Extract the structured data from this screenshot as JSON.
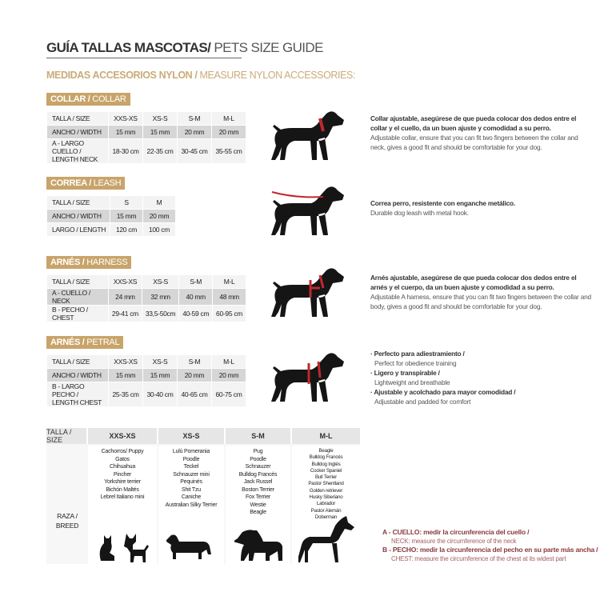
{
  "title": {
    "es": "GUÍA TALLAS MASCOTAS/",
    "en": " PETS SIZE GUIDE"
  },
  "subtitle": {
    "es": "MEDIDAS ACCESORIOS NYLON /",
    "en": " MEASURE NYLON ACCESSORIES:"
  },
  "collar": {
    "badge_es": "COLLAR /",
    "badge_en": " COLLAR",
    "header": [
      "TALLA / SIZE",
      "XXS-XS",
      "XS-S",
      "S-M",
      "M-L"
    ],
    "rows": [
      [
        "ANCHO / WIDTH",
        "15 mm",
        "15 mm",
        "20 mm",
        "20 mm"
      ],
      [
        "A - LARGO CUELLO / LENGTH NECK",
        "18-30 cm",
        "22-35 cm",
        "30-45 cm",
        "35-55 cm"
      ]
    ],
    "desc_es": "Collar ajustable, asegúrese de que pueda colocar dos dedos entre el collar y el cuello, da un buen ajuste y comodidad a su perro.",
    "desc_en": "Adjustable collar, ensure that you can fit two fingers between the collar and neck, gives a good fit and should be comfortable for your dog."
  },
  "leash": {
    "badge_es": "CORREA /",
    "badge_en": " LEASH",
    "header": [
      "TALLA / SIZE",
      "S",
      "M"
    ],
    "rows": [
      [
        "ANCHO / WIDTH",
        "15 mm",
        "20 mm"
      ],
      [
        "LARGO / LENGTH",
        "120 cm",
        "100 cm"
      ]
    ],
    "desc_es": "Correa perro, resistente con enganche metálico.",
    "desc_en": "Durable dog leash with metal hook."
  },
  "harness": {
    "badge_es": "ARNÉS /",
    "badge_en": " HARNESS",
    "header": [
      "TALLA / SIZE",
      "XXS-XS",
      "XS-S",
      "S-M",
      "M-L"
    ],
    "rows": [
      [
        "A - CUELLO / NECK",
        "24 mm",
        "32 mm",
        "40 mm",
        "48 mm"
      ],
      [
        "B - PECHO / CHEST",
        "29-41 cm",
        "33,5-50cm",
        "40-59 cm",
        "60-95 cm"
      ]
    ],
    "desc_es": "Arnés ajustable, asegúrese de que pueda colocar dos dedos entre el arnés y el cuerpo, da un buen ajuste y comodidad a su perro.",
    "desc_en": "Adjustable A harness, ensure that you can fit two fingers between the collar and body, gives a good fit and should be comfortable for your dog."
  },
  "petral": {
    "badge_es": "ARNÉS /",
    "badge_en": " PETRAL",
    "header": [
      "TALLA / SIZE",
      "XXS-XS",
      "XS-S",
      "S-M",
      "M-L"
    ],
    "rows": [
      [
        "ANCHO / WIDTH",
        "15 mm",
        "15 mm",
        "20 mm",
        "20 mm"
      ],
      [
        "B - LARGO PECHO / LENGTH CHEST",
        "25-35 cm",
        "30-40 cm",
        "40-65 cm",
        "60-75 cm"
      ]
    ],
    "bullets": [
      {
        "es": "· Perfecto para adiestramiento /",
        "en": "Perfect for obedience training"
      },
      {
        "es": "· Ligero y transpirable /",
        "en": "Lightweight and breathable"
      },
      {
        "es": "· Ajustable y acolchado para mayor comodidad /",
        "en": "Adjustable and padded for comfort"
      }
    ]
  },
  "breeds": {
    "size_label": "TALLA /  SIZE",
    "breed_label": "RAZA / BREED",
    "sizes": [
      "XXS-XS",
      "XS-S",
      "S-M",
      "M-L"
    ],
    "lists": [
      [
        "Cachorros/ Puppy",
        "Gatos",
        "Chihuahua",
        "Pincher",
        "Yorkshire terrier",
        "Bichón Maltés",
        "Lebrel Italiano mini"
      ],
      [
        "Lulú Pomerania",
        "Poodle",
        "Teckel",
        "Schnauzer mini",
        "Pequinés",
        "Shit Tzu",
        "Caniche",
        "Australian Silky Terrier"
      ],
      [
        "Pug",
        "Poodle",
        "Schnauzer",
        "Bulldog Francés",
        "Jack Russel",
        "Boston Terrier",
        "Fox Terrier",
        "Westie",
        "Beagle"
      ],
      [
        "Beagle",
        "Bulldog Francés",
        "Bulldog Inglés",
        "Cocker Spaniel",
        "Bull Terrier",
        "Pastor Shentland",
        "Golden retriever",
        "Husky Siberiano",
        "Labrador",
        "Pastor Alemán",
        "Doberman"
      ]
    ]
  },
  "legend": {
    "a_es": "A - CUELLO: medir la circunferencia del cuello /",
    "a_en": "NECK: measure the circumference of the neck",
    "b_es": "B - PECHO: medir la circunferencia del pecho en su parte más ancha /",
    "b_en": "CHEST: measure the circumference of the chest at its widest part"
  },
  "colors": {
    "gold": "#c8a46a",
    "accent_red": "#c0282d",
    "legend": "#8b3a3f"
  }
}
